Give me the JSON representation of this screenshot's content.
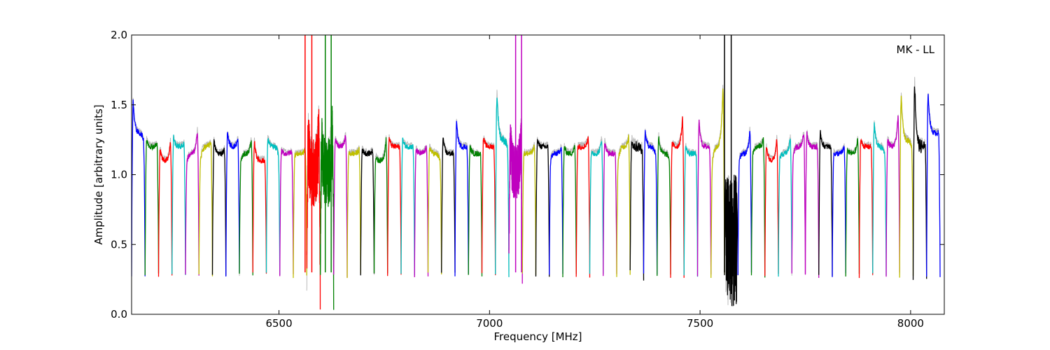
{
  "chart_data": {
    "type": "line",
    "title": "",
    "xlabel": "Frequency [MHz]",
    "ylabel": "Amplitude [arbitrary units]",
    "annotation": "MK - LL",
    "xlim": [
      6150,
      8080
    ],
    "ylim": [
      0.0,
      2.0
    ],
    "xticks": [
      6500,
      7000,
      7500,
      8000
    ],
    "xtick_labels": [
      "6500",
      "7000",
      "7500",
      "8000"
    ],
    "yticks": [
      0.0,
      0.5,
      1.0,
      1.5,
      2.0
    ],
    "ytick_labels": [
      "0.0",
      "0.5",
      "1.0",
      "1.5",
      "2.0"
    ],
    "grid": false,
    "legend": "none",
    "background_series_color": "#bbbbbb",
    "color_cycle": [
      "#0000ff",
      "#008000",
      "#ff0000",
      "#00bfbf",
      "#bf00bf",
      "#bfbf00",
      "#000000"
    ],
    "channel_width_mhz": 32,
    "channels": [
      {
        "start": 6150,
        "color": "#0000ff",
        "level": 1.3,
        "lmax": 1.52,
        "rmax": 1.25,
        "ripple": 0.02
      },
      {
        "start": 6182,
        "color": "#008000",
        "level": 1.2,
        "lmax": 1.25,
        "rmax": 1.22,
        "ripple": 0.02
      },
      {
        "start": 6214,
        "color": "#ff0000",
        "level": 1.1,
        "lmax": 1.18,
        "rmax": 1.23,
        "ripple": 0.02
      },
      {
        "start": 6246,
        "color": "#00bfbf",
        "level": 1.2,
        "lmax": 1.27,
        "rmax": 1.22,
        "ripple": 0.02
      },
      {
        "start": 6278,
        "color": "#bf00bf",
        "level": 1.15,
        "lmax": 1.1,
        "rmax": 1.31,
        "ripple": 0.02
      },
      {
        "start": 6310,
        "color": "#bfbf00",
        "level": 1.2,
        "lmax": 1.1,
        "rmax": 1.23,
        "ripple": 0.02
      },
      {
        "start": 6342,
        "color": "#000000",
        "level": 1.15,
        "lmax": 1.24,
        "rmax": 1.18,
        "ripple": 0.02
      },
      {
        "start": 6374,
        "color": "#0000ff",
        "level": 1.2,
        "lmax": 1.3,
        "rmax": 1.25,
        "ripple": 0.02
      },
      {
        "start": 6406,
        "color": "#008000",
        "level": 1.15,
        "lmax": 1.1,
        "rmax": 1.25,
        "ripple": 0.02
      },
      {
        "start": 6438,
        "color": "#ff0000",
        "level": 1.1,
        "lmax": 1.24,
        "rmax": 1.1,
        "ripple": 0.02
      },
      {
        "start": 6470,
        "color": "#00bfbf",
        "level": 1.2,
        "lmax": 1.26,
        "rmax": 1.15,
        "ripple": 0.02
      },
      {
        "start": 6502,
        "color": "#bf00bf",
        "level": 1.15,
        "lmax": 1.17,
        "rmax": 1.17,
        "ripple": 0.02
      },
      {
        "start": 6534,
        "color": "#bfbf00",
        "level": 1.15,
        "lmax": 1.14,
        "rmax": 1.18,
        "ripple": 0.02
      },
      {
        "start": 6566,
        "color": "#ff0000",
        "level": 1.0,
        "lmax": 1.2,
        "rmax": 1.25,
        "ripple": 0.25
      },
      {
        "start": 6598,
        "color": "#008000",
        "level": 1.0,
        "lmax": 1.2,
        "rmax": 1.25,
        "ripple": 0.25
      },
      {
        "start": 6630,
        "color": "#bf00bf",
        "level": 1.2,
        "lmax": 1.25,
        "rmax": 1.28,
        "ripple": 0.02
      },
      {
        "start": 6662,
        "color": "#bfbf00",
        "level": 1.15,
        "lmax": 1.15,
        "rmax": 1.18,
        "ripple": 0.02
      },
      {
        "start": 6694,
        "color": "#000000",
        "level": 1.15,
        "lmax": 1.18,
        "rmax": 1.17,
        "ripple": 0.02
      },
      {
        "start": 6726,
        "color": "#008000",
        "level": 1.1,
        "lmax": 1.12,
        "rmax": 1.25,
        "ripple": 0.02
      },
      {
        "start": 6758,
        "color": "#ff0000",
        "level": 1.2,
        "lmax": 1.26,
        "rmax": 1.2,
        "ripple": 0.02
      },
      {
        "start": 6790,
        "color": "#00bfbf",
        "level": 1.2,
        "lmax": 1.25,
        "rmax": 1.2,
        "ripple": 0.02
      },
      {
        "start": 6822,
        "color": "#bf00bf",
        "level": 1.15,
        "lmax": 1.18,
        "rmax": 1.2,
        "ripple": 0.02
      },
      {
        "start": 6854,
        "color": "#bfbf00",
        "level": 1.15,
        "lmax": 1.2,
        "rmax": 1.1,
        "ripple": 0.02
      },
      {
        "start": 6886,
        "color": "#000000",
        "level": 1.15,
        "lmax": 1.26,
        "rmax": 1.15,
        "ripple": 0.02
      },
      {
        "start": 6918,
        "color": "#0000ff",
        "level": 1.2,
        "lmax": 1.37,
        "rmax": 1.2,
        "ripple": 0.02
      },
      {
        "start": 6950,
        "color": "#008000",
        "level": 1.15,
        "lmax": 1.2,
        "rmax": 1.15,
        "ripple": 0.02
      },
      {
        "start": 6982,
        "color": "#ff0000",
        "level": 1.2,
        "lmax": 1.26,
        "rmax": 1.2,
        "ripple": 0.02
      },
      {
        "start": 7014,
        "color": "#00bfbf",
        "level": 1.25,
        "lmax": 1.57,
        "rmax": 1.2,
        "ripple": 0.03
      },
      {
        "start": 7046,
        "color": "#bf00bf",
        "level": 1.0,
        "lmax": 1.2,
        "rmax": 1.2,
        "ripple": 0.2
      },
      {
        "start": 7078,
        "color": "#bfbf00",
        "level": 1.15,
        "lmax": 1.15,
        "rmax": 1.2,
        "ripple": 0.02
      },
      {
        "start": 7110,
        "color": "#000000",
        "level": 1.2,
        "lmax": 1.24,
        "rmax": 1.2,
        "ripple": 0.02
      },
      {
        "start": 7142,
        "color": "#0000ff",
        "level": 1.15,
        "lmax": 1.12,
        "rmax": 1.2,
        "ripple": 0.02
      },
      {
        "start": 7174,
        "color": "#008000",
        "level": 1.15,
        "lmax": 1.2,
        "rmax": 1.2,
        "ripple": 0.02
      },
      {
        "start": 7206,
        "color": "#ff0000",
        "level": 1.2,
        "lmax": 1.2,
        "rmax": 1.26,
        "ripple": 0.02
      },
      {
        "start": 7238,
        "color": "#00bfbf",
        "level": 1.15,
        "lmax": 1.15,
        "rmax": 1.25,
        "ripple": 0.02
      },
      {
        "start": 7270,
        "color": "#bf00bf",
        "level": 1.15,
        "lmax": 1.23,
        "rmax": 1.15,
        "ripple": 0.02
      },
      {
        "start": 7302,
        "color": "#bfbf00",
        "level": 1.2,
        "lmax": 1.1,
        "rmax": 1.27,
        "ripple": 0.02
      },
      {
        "start": 7334,
        "color": "#000000",
        "level": 1.2,
        "lmax": 1.24,
        "rmax": 1.18,
        "ripple": 0.04
      },
      {
        "start": 7366,
        "color": "#0000ff",
        "level": 1.2,
        "lmax": 1.3,
        "rmax": 1.15,
        "ripple": 0.02
      },
      {
        "start": 7398,
        "color": "#008000",
        "level": 1.15,
        "lmax": 1.27,
        "rmax": 1.12,
        "ripple": 0.02
      },
      {
        "start": 7430,
        "color": "#ff0000",
        "level": 1.2,
        "lmax": 1.22,
        "rmax": 1.4,
        "ripple": 0.02
      },
      {
        "start": 7462,
        "color": "#00bfbf",
        "level": 1.15,
        "lmax": 1.2,
        "rmax": 1.15,
        "ripple": 0.02
      },
      {
        "start": 7494,
        "color": "#bf00bf",
        "level": 1.2,
        "lmax": 1.38,
        "rmax": 1.2,
        "ripple": 0.02
      },
      {
        "start": 7526,
        "color": "#bfbf00",
        "level": 1.2,
        "lmax": 1.1,
        "rmax": 1.62,
        "ripple": 0.02
      },
      {
        "start": 7558,
        "color": "#000000",
        "level": 0.5,
        "lmax": 1.0,
        "rmax": 0.9,
        "ripple": 0.45
      },
      {
        "start": 7590,
        "color": "#0000ff",
        "level": 1.15,
        "lmax": 1.12,
        "rmax": 1.31,
        "ripple": 0.02
      },
      {
        "start": 7622,
        "color": "#008000",
        "level": 1.2,
        "lmax": 1.15,
        "rmax": 1.25,
        "ripple": 0.02
      },
      {
        "start": 7654,
        "color": "#ff0000",
        "level": 1.1,
        "lmax": 1.2,
        "rmax": 1.25,
        "ripple": 0.02
      },
      {
        "start": 7686,
        "color": "#00bfbf",
        "level": 1.15,
        "lmax": 1.12,
        "rmax": 1.26,
        "ripple": 0.02
      },
      {
        "start": 7718,
        "color": "#bf00bf",
        "level": 1.2,
        "lmax": 1.15,
        "rmax": 1.3,
        "ripple": 0.02
      },
      {
        "start": 7750,
        "color": "#bf00bf",
        "level": 1.2,
        "lmax": 1.3,
        "rmax": 1.2,
        "ripple": 0.02
      },
      {
        "start": 7782,
        "color": "#000000",
        "level": 1.2,
        "lmax": 1.3,
        "rmax": 1.2,
        "ripple": 0.02
      },
      {
        "start": 7814,
        "color": "#0000ff",
        "level": 1.15,
        "lmax": 1.15,
        "rmax": 1.2,
        "ripple": 0.02
      },
      {
        "start": 7846,
        "color": "#008000",
        "level": 1.15,
        "lmax": 1.18,
        "rmax": 1.25,
        "ripple": 0.02
      },
      {
        "start": 7878,
        "color": "#ff0000",
        "level": 1.2,
        "lmax": 1.25,
        "rmax": 1.2,
        "ripple": 0.02
      },
      {
        "start": 7910,
        "color": "#00bfbf",
        "level": 1.2,
        "lmax": 1.36,
        "rmax": 1.15,
        "ripple": 0.02
      },
      {
        "start": 7942,
        "color": "#bf00bf",
        "level": 1.2,
        "lmax": 1.25,
        "rmax": 1.42,
        "ripple": 0.02
      },
      {
        "start": 7974,
        "color": "#bfbf00",
        "level": 1.25,
        "lmax": 1.56,
        "rmax": 1.2,
        "ripple": 0.02
      },
      {
        "start": 8006,
        "color": "#000000",
        "level": 1.2,
        "lmax": 1.64,
        "rmax": 1.2,
        "ripple": 0.05
      },
      {
        "start": 8038,
        "color": "#0000ff",
        "level": 1.3,
        "lmax": 1.58,
        "rmax": 1.3,
        "ripple": 0.02
      }
    ],
    "spikes": [
      {
        "x": 6562,
        "color": "#ff0000"
      },
      {
        "x": 6578,
        "color": "#ff0000"
      },
      {
        "x": 6610,
        "color": "#008000"
      },
      {
        "x": 6624,
        "color": "#008000"
      },
      {
        "x": 7062,
        "color": "#bf00bf"
      },
      {
        "x": 7076,
        "color": "#bf00bf"
      },
      {
        "x": 7558,
        "color": "#000000"
      },
      {
        "x": 7574,
        "color": "#000000"
      }
    ]
  }
}
